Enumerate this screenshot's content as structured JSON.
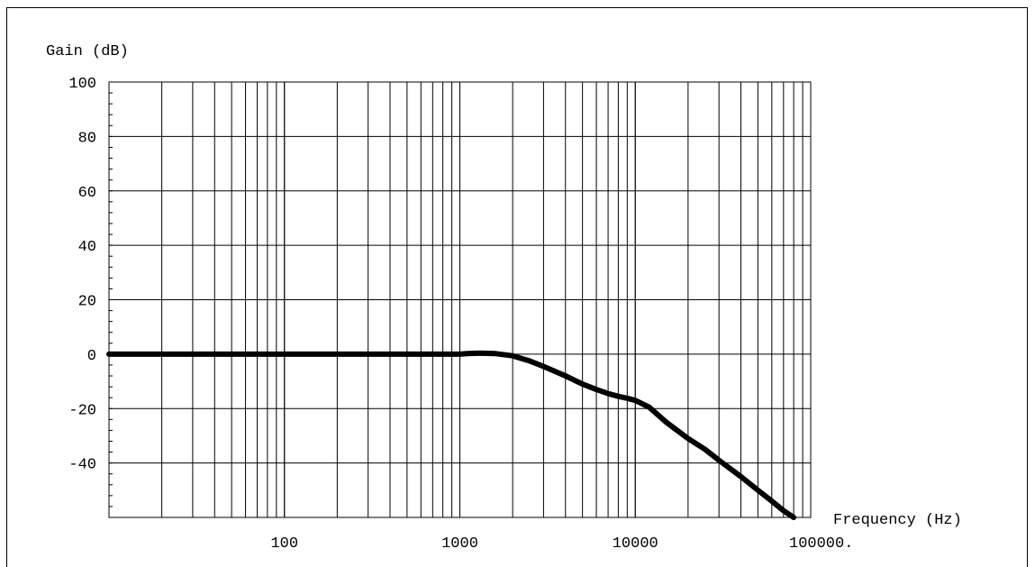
{
  "chart_data": {
    "type": "line",
    "title": "",
    "ylabel": "Gain (dB)",
    "xlabel": "Frequency (Hz)",
    "x_scale": "log",
    "xlim": [
      10,
      100000
    ],
    "ylim": [
      -60,
      100
    ],
    "x_ticks": [
      {
        "value": 100,
        "label": "100"
      },
      {
        "value": 1000,
        "label": "1000"
      },
      {
        "value": 10000,
        "label": "10000"
      },
      {
        "value": 100000,
        "label": "100000."
      }
    ],
    "y_ticks": [
      {
        "value": 100,
        "label": "100"
      },
      {
        "value": 80,
        "label": "80"
      },
      {
        "value": 60,
        "label": "60"
      },
      {
        "value": 40,
        "label": "40"
      },
      {
        "value": 20,
        "label": "20"
      },
      {
        "value": 0,
        "label": "0"
      },
      {
        "value": -20,
        "label": "-20"
      },
      {
        "value": -40,
        "label": "-40"
      }
    ],
    "grid": true,
    "series": [
      {
        "x": [
          10,
          100,
          1000,
          1100,
          1300,
          1600,
          2000,
          2500,
          3000,
          4000,
          5000,
          6000,
          7000,
          8000,
          9000,
          10000,
          12000,
          15000,
          20000,
          25000,
          30000,
          40000,
          50000,
          60000,
          70000,
          80000
        ],
        "y": [
          0,
          0,
          0,
          0.2,
          0.4,
          0.2,
          -0.6,
          -2.5,
          -4.5,
          -8,
          -11,
          -13,
          -14.5,
          -15.5,
          -16.2,
          -17,
          -19.5,
          -25,
          -31,
          -35,
          -39,
          -45,
          -50,
          -54,
          -57.5,
          -60
        ]
      }
    ]
  }
}
